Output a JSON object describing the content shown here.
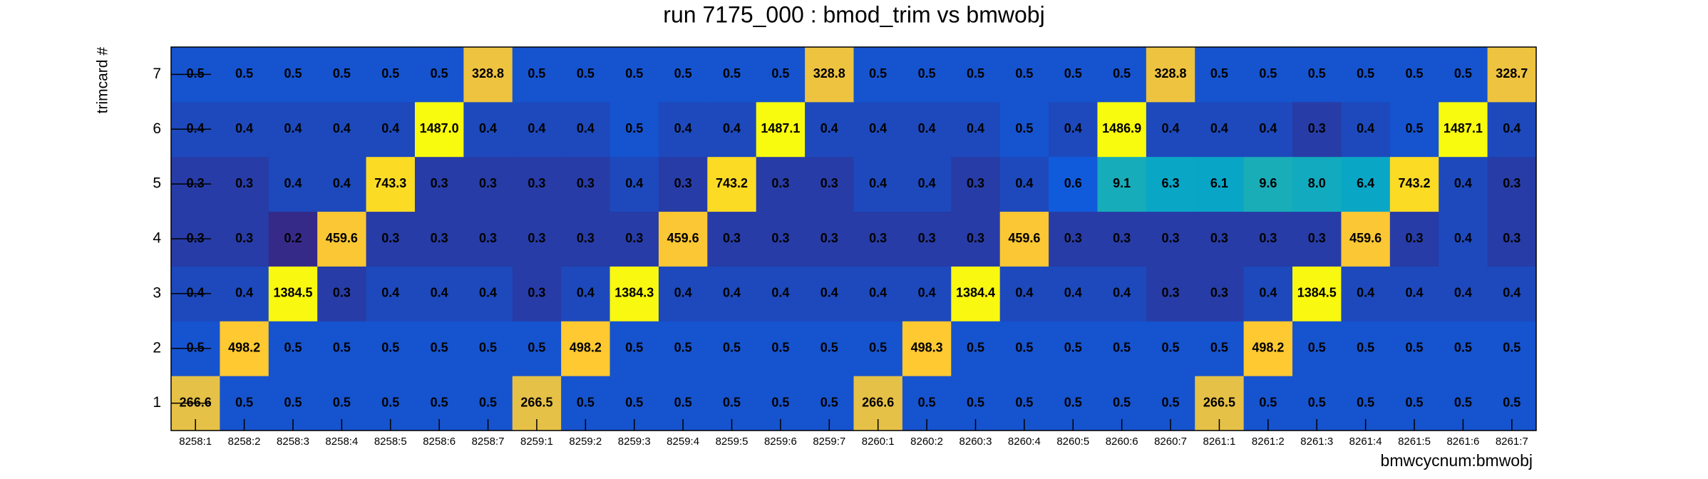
{
  "chart_data": {
    "type": "heatmap",
    "title": "run 7175_000 : bmod_trim vs bmwobj",
    "x_label": "bmwcycnum:bmwobj",
    "y_label": "trimcard #",
    "categories": [
      "8258:1",
      "8258:2",
      "8258:3",
      "8258:4",
      "8258:5",
      "8258:6",
      "8258:7",
      "8259:1",
      "8259:2",
      "8259:3",
      "8259:4",
      "8259:5",
      "8259:6",
      "8259:7",
      "8260:1",
      "8260:2",
      "8260:3",
      "8260:4",
      "8260:5",
      "8260:6",
      "8260:7",
      "8261:1",
      "8261:2",
      "8261:3",
      "8261:4",
      "8261:5",
      "8261:6",
      "8261:7"
    ],
    "y_categories": [
      1,
      2,
      3,
      4,
      5,
      6,
      7
    ],
    "z": [
      [
        266.6,
        0.5,
        0.5,
        0.5,
        0.5,
        0.5,
        0.5,
        266.5,
        0.5,
        0.5,
        0.5,
        0.5,
        0.5,
        0.5,
        266.6,
        0.5,
        0.5,
        0.5,
        0.5,
        0.5,
        0.5,
        266.5,
        0.5,
        0.5,
        0.5,
        0.5,
        0.5,
        0.5
      ],
      [
        0.5,
        498.2,
        0.5,
        0.5,
        0.5,
        0.5,
        0.5,
        0.5,
        498.2,
        0.5,
        0.5,
        0.5,
        0.5,
        0.5,
        0.5,
        498.3,
        0.5,
        0.5,
        0.5,
        0.5,
        0.5,
        0.5,
        498.2,
        0.5,
        0.5,
        0.5,
        0.5,
        0.5
      ],
      [
        0.4,
        0.4,
        1384.5,
        0.3,
        0.4,
        0.4,
        0.4,
        0.3,
        0.4,
        1384.3,
        0.4,
        0.4,
        0.4,
        0.4,
        0.4,
        0.4,
        1384.4,
        0.4,
        0.4,
        0.4,
        0.3,
        0.3,
        0.4,
        1384.5,
        0.4,
        0.4,
        0.4,
        0.4
      ],
      [
        0.3,
        0.3,
        0.2,
        459.6,
        0.3,
        0.3,
        0.3,
        0.3,
        0.3,
        0.3,
        459.6,
        0.3,
        0.3,
        0.3,
        0.3,
        0.3,
        0.3,
        459.6,
        0.3,
        0.3,
        0.3,
        0.3,
        0.3,
        0.3,
        459.6,
        0.3,
        0.4,
        0.3
      ],
      [
        0.3,
        0.3,
        0.4,
        0.4,
        743.3,
        0.3,
        0.3,
        0.3,
        0.3,
        0.4,
        0.3,
        743.2,
        0.3,
        0.3,
        0.4,
        0.4,
        0.3,
        0.4,
        0.6,
        9.1,
        6.3,
        6.1,
        9.6,
        8.0,
        6.4,
        743.2,
        0.4,
        0.3
      ],
      [
        0.4,
        0.4,
        0.4,
        0.4,
        0.4,
        1487.0,
        0.4,
        0.4,
        0.4,
        0.5,
        0.4,
        0.4,
        1487.1,
        0.4,
        0.4,
        0.4,
        0.4,
        0.5,
        0.4,
        1486.9,
        0.4,
        0.4,
        0.4,
        0.3,
        0.4,
        0.5,
        1487.1,
        0.4
      ],
      [
        0.5,
        0.5,
        0.5,
        0.5,
        0.5,
        0.5,
        328.8,
        0.5,
        0.5,
        0.5,
        0.5,
        0.5,
        0.5,
        328.8,
        0.5,
        0.5,
        0.5,
        0.5,
        0.5,
        0.5,
        328.8,
        0.5,
        0.5,
        0.5,
        0.5,
        0.5,
        0.5,
        328.7
      ]
    ],
    "z_labels": [
      [
        "266.6",
        "0.5",
        "0.5",
        "0.5",
        "0.5",
        "0.5",
        "0.5",
        "266.5",
        "0.5",
        "0.5",
        "0.5",
        "0.5",
        "0.5",
        "0.5",
        "266.6",
        "0.5",
        "0.5",
        "0.5",
        "0.5",
        "0.5",
        "0.5",
        "266.5",
        "0.5",
        "0.5",
        "0.5",
        "0.5",
        "0.5",
        "0.5"
      ],
      [
        "0.5",
        "498.2",
        "0.5",
        "0.5",
        "0.5",
        "0.5",
        "0.5",
        "0.5",
        "498.2",
        "0.5",
        "0.5",
        "0.5",
        "0.5",
        "0.5",
        "0.5",
        "498.3",
        "0.5",
        "0.5",
        "0.5",
        "0.5",
        "0.5",
        "0.5",
        "498.2",
        "0.5",
        "0.5",
        "0.5",
        "0.5",
        "0.5"
      ],
      [
        "0.4",
        "0.4",
        "1384.5",
        "0.3",
        "0.4",
        "0.4",
        "0.4",
        "0.3",
        "0.4",
        "1384.3",
        "0.4",
        "0.4",
        "0.4",
        "0.4",
        "0.4",
        "0.4",
        "1384.4",
        "0.4",
        "0.4",
        "0.4",
        "0.3",
        "0.3",
        "0.4",
        "1384.5",
        "0.4",
        "0.4",
        "0.4",
        "0.4"
      ],
      [
        "0.3",
        "0.3",
        "0.2",
        "459.6",
        "0.3",
        "0.3",
        "0.3",
        "0.3",
        "0.3",
        "0.3",
        "459.6",
        "0.3",
        "0.3",
        "0.3",
        "0.3",
        "0.3",
        "0.3",
        "459.6",
        "0.3",
        "0.3",
        "0.3",
        "0.3",
        "0.3",
        "0.3",
        "459.6",
        "0.3",
        "0.4",
        "0.3"
      ],
      [
        "0.3",
        "0.3",
        "0.4",
        "0.4",
        "743.3",
        "0.3",
        "0.3",
        "0.3",
        "0.3",
        "0.4",
        "0.3",
        "743.2",
        "0.3",
        "0.3",
        "0.4",
        "0.4",
        "0.3",
        "0.4",
        "0.6",
        "9.1",
        "6.3",
        "6.1",
        "9.6",
        "8.0",
        "6.4",
        "743.2",
        "0.4",
        "0.3"
      ],
      [
        "0.4",
        "0.4",
        "0.4",
        "0.4",
        "0.4",
        "1487.0",
        "0.4",
        "0.4",
        "0.4",
        "0.5",
        "0.4",
        "0.4",
        "1487.1",
        "0.4",
        "0.4",
        "0.4",
        "0.4",
        "0.5",
        "0.4",
        "1486.9",
        "0.4",
        "0.4",
        "0.4",
        "0.3",
        "0.4",
        "0.5",
        "1487.1",
        "0.4"
      ],
      [
        "0.5",
        "0.5",
        "0.5",
        "0.5",
        "0.5",
        "0.5",
        "328.8",
        "0.5",
        "0.5",
        "0.5",
        "0.5",
        "0.5",
        "0.5",
        "328.8",
        "0.5",
        "0.5",
        "0.5",
        "0.5",
        "0.5",
        "0.5",
        "328.8",
        "0.5",
        "0.5",
        "0.5",
        "0.5",
        "0.5",
        "0.5",
        "328.7"
      ]
    ],
    "zlim": [
      0.2,
      1487.1
    ],
    "log_z": true,
    "colorscale": [
      "#352a87",
      "#0f5cdd",
      "#1481d6",
      "#06a4ca",
      "#2eb7a4",
      "#87bf77",
      "#d1bb59",
      "#fec832",
      "#f9fb0e"
    ]
  }
}
